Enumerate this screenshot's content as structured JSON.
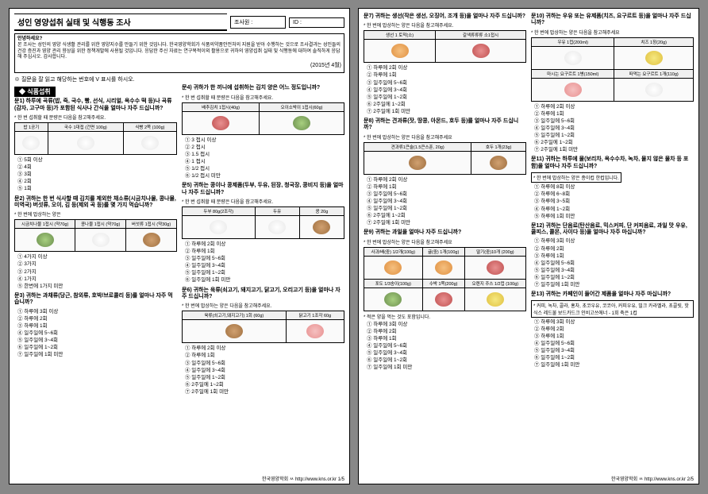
{
  "title": "성인 영양섭취 실태 및 식행동 조사",
  "surveyor_label": "조사원 :",
  "id_label": "ID :",
  "greeting": "안녕하세요?",
  "intro": "본 조사는 성인의 영양 식생활 관리를 위한 영양지수를 만들기 위한 것입니다. 한국영양학회가 식품의약품안전처의 지원을 받아 수행하는 것으로 조사결과는 성인들의 건강 증진과 영양 관리 향상을 위한 정책개발에 사용될 것입니다. 응답한 주신 자료는 연구목적이외 활용으로 귀하의 영양섭취 실태 및 식행동에 대하여 솔직하게 응답해 주십시오. 감사합니다.",
  "date": "(2015년 4월)",
  "instruction": "※ 질문을 잘 읽고 해당하는 번호에 V 표시를 하시오.",
  "section": "◆ 식품섭취",
  "q1": {
    "title": "문1) 하루에 곡류(밥, 죽, 국수, 빵, 선식, 시리얼, 옥수수 떡 등)나 곡류(감자, 고구마 등)가 포함된 식사나 간식을 얼마나 자주 드십니까?",
    "hint": "* 한 번 섭취할 때 분량은 다음을 참고해주세요.",
    "cols": [
      "밥 1공기",
      "국수 1대접 (건면 100g)",
      "식빵 2쪽 (100g)"
    ],
    "opts": [
      "① 5회 이상",
      "② 4회",
      "③ 3회",
      "④ 2회",
      "⑤ 1회"
    ]
  },
  "q2": {
    "title": "문2) 귀하는 한 번 식사할 때 김치를 제외한 채소류(시금치나물, 콩나물, 미역국) 버섯류, 오이, 김 등(제외 곡 등)를 몇 가지 먹습니까?",
    "hint": "* 한 번에 밥상하는 양은",
    "cols": [
      "시금치나물 1접시 (약70g)",
      "콩나물 1접시 (약70g)",
      "버섯류 1접시 (약30g)"
    ],
    "opts": [
      "① 4가지 이상",
      "② 3가지",
      "③ 2가지",
      "④ 1가지",
      "⑤ 한번에 1가지 미만"
    ]
  },
  "q3": {
    "title": "문3) 귀하는 과채류(당근, 참외류, 호박/브로콜리 등)를 얼마나 자주 먹습니까?",
    "opts": [
      "① 하루에 3회 이상",
      "② 하루에 2회",
      "③ 하루에 1회",
      "④ 일주일에 5~6회",
      "⑤ 일주일에 3~4회",
      "⑥ 일주일에 1~2회",
      "⑦ 일주일에 1회 미만"
    ]
  },
  "q4": {
    "title": "문4) 귀하가 한 끼니에 섭취하는 김치 양은 어느 정도입니까?",
    "hint": "* 한 번 섭취할 때 분량은 다음을 참고해주세요.",
    "cols": [
      "배추김치 1접시(40g)",
      "오이소박이 1접시(60g)"
    ],
    "opts": [
      "① 3 접시 이상",
      "② 2 접시",
      "③ 1.5 접시",
      "④ 1 접시",
      "⑤ 1/2 접시",
      "⑥ 1/2 접시 미만"
    ]
  },
  "q5": {
    "title": "문5) 귀하는 콩이나 콩제품(두부, 두유, 된장, 청국장, 콩비지 등)을 얼마나 자주 드십니까?",
    "hint": "* 한 번 섭취할 때 분량은 다음을 참고해주세요.",
    "cols": [
      "두부 80g(2조각)",
      "두유",
      "콩 20g"
    ],
    "opts": [
      "① 하루에 2회 이상",
      "② 하루에 1회",
      "③ 일주일에 5~6회",
      "④ 일주일에 3~4회",
      "⑤ 일주일에 1~2회",
      "⑥ 일주일에 1회 미만"
    ]
  },
  "q6": {
    "title": "문6) 귀하는 육류(쇠고기, 돼지고기, 닭고기, 오리고기 등)을 얼마나 자주 드십니까?",
    "hint": "* 한 번에 밥상하는 양은 다음을 참고해주세요.",
    "cols": [
      "육류(쇠고기,돼지고기) 1회 (60g)",
      "닭고기 1조각 60g"
    ],
    "opts": [
      "① 하루에 2회 이상",
      "② 하루에 1회",
      "③ 일주일에 5~6회",
      "④ 일주일에 3~4회",
      "⑤ 일주일에 1~2회",
      "⑥ 2주일에 1~2회",
      "⑦ 2주일에 1회 미만"
    ]
  },
  "q7": {
    "title": "문7) 귀하는 생선(작은 생선, 오징어, 조개 등)을 얼마나 자주 드십니까?",
    "hint": "* 한 번에 밥상하는 양은 다음을 참고해주세요.",
    "cols": [
      "생선 1 토막(소)",
      "갈색류류류 소1접시"
    ],
    "opts": [
      "① 하루에 2회 이상",
      "② 하루에 1회",
      "③ 일주일에 5~6회",
      "④ 일주일에 3~4회",
      "⑤ 일주일에 1~2회",
      "⑥ 2주일에 1~2회",
      "⑦ 2주일에 1회 미만"
    ]
  },
  "q8": {
    "title": "문8) 귀하는 견과류(잣, 땅콩, 아몬드, 호두 등)를 얼마나 자주 드십니까?",
    "hint": "* 한 번에 밥상하는 양은 다음을 참고해주세요",
    "cols": [
      "견과류1큰술(1.5큰스푼, 20g)",
      "호두 1개(23g)"
    ],
    "opts": [
      "① 하루에 2회 이상",
      "② 하루에 1회",
      "③ 일주일에 5~6회",
      "④ 일주일에 3~4회",
      "⑤ 일주일에 1~2회",
      "⑥ 2주일에 1~2회",
      "⑦ 2주일에 1회 미만"
    ]
  },
  "q9": {
    "title": "문9) 귀하는 과일을 얼마나 자주 드십니까?",
    "hint": "* 한 번에 밥상하는 양은 다음을 참고해주세요",
    "cols": [
      "사과/배(중) 1/2개(100g)",
      "귤(중) 1개(100g)",
      "딸기(중)10개 (200g)"
    ],
    "cols2": [
      "포도 1/3송이(100g)",
      "수박 1쪽(200g)",
      "오렌지 주스 1/2컵 (100g)"
    ],
    "note": "* 적은 양을 먹는 것도 포함입니다.",
    "opts": [
      "① 하루에 3회 이상",
      "② 하루에 2회",
      "③ 하루에 1회",
      "④ 일주일에 5~6회",
      "⑤ 일주일에 3~4회",
      "⑥ 일주일에 1~2회",
      "⑦ 일주일에 1회 미만"
    ]
  },
  "q10": {
    "title": "문10) 귀하는 우유 또는 유제품(치즈, 요구르트 등)을 얼마나 자주 드십니까?",
    "hint": "* 한 번에 밥상하는 양은 다음을 참고해주세요",
    "cols": [
      "우유 1컵(200ml)",
      "치즈 1장(20g)"
    ],
    "cols2": [
      "마시는 요구르트 1병(150ml)",
      "떠먹는 요구르트 1개(110g)"
    ],
    "opts": [
      "① 하루에 2회 이상",
      "② 하루에 1회",
      "③ 일주일에 5~6회",
      "④ 일주일에 3~4회",
      "⑤ 일주일에 1~2회",
      "⑥ 2주일에 1~2회",
      "⑦ 2주일에 1회 미만"
    ]
  },
  "q11": {
    "title": "문11) 귀하는 하루에 물(보리차, 옥수수차, 녹차, 물지 않은 물차 등 포함)을 얼마나 자주 드십니까?",
    "hint": "* 한 번에 밥상하는 양은 종이컵 한컵입니다.",
    "opts": [
      "① 하루에 8회 이상",
      "② 하루에 6~8회",
      "③ 하루에 3~5회",
      "④ 하루에 1~2회",
      "⑤ 하루에 1회 미만"
    ]
  },
  "q12": {
    "title": "문12) 귀하는 단음료(탄산음료, 믹스커피, 단 커피음료, 과일 맛 우유, 쿨피스, 콜몬, 사이다 등)을 얼마나 자주 마십니까?",
    "opts": [
      "① 하루에 3회 이상",
      "② 하루에 2회",
      "③ 하루에 1회",
      "④ 일주일에 5~6회",
      "⑤ 일주일에 3~4회",
      "⑥ 일주일에 1~2회",
      "⑦ 일주일에 1회 미만"
    ]
  },
  "q13": {
    "title": "문13) 귀하는 카페인이 들어간 제품을 얼마나 자주 마십니까?",
    "hint": "* 커피, 녹차, 콜라, 홍차, 초코우유, 코코아, 커피우유, 밀크 카라멜라, 초콜릿, 핫식스 레드불 보드카드크 인비고쓰에너 - 1회 축은 1컵",
    "opts": [
      "① 하루에 3회 이상",
      "② 하루에 2회",
      "③ 하루에 1회",
      "④ 일주일에 5~6회",
      "⑤ 일주일에 3~4회",
      "⑥ 일주일에 1~2회",
      "⑦ 일주일에 1회 미만"
    ]
  },
  "footer1": "한국영양학회 ㅆ http://www.kns.or.kr 1/5",
  "footer2": "한국영양학회 ㅆ http://www.kns.or.kr 2/5"
}
